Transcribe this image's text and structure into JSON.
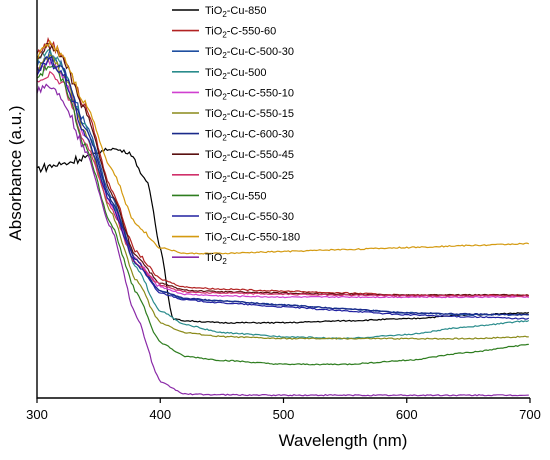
{
  "chart_data": {
    "type": "line",
    "title": "",
    "xlabel": "Wavelength (nm)",
    "ylabel": "Absorbance (a.u.)",
    "xlim": [
      300,
      700
    ],
    "ylim": [
      0,
      1
    ],
    "x_ticks": [
      300,
      400,
      500,
      600,
      700
    ],
    "y_ticks_shown": false,
    "grid": false,
    "legend_position": "top-center",
    "series": [
      {
        "name": "TiO2-Cu-850",
        "name_base": "TiO",
        "name_sub": "2",
        "name_rest": "-Cu-850",
        "color": "#000000",
        "points": [
          [
            300,
            0.58
          ],
          [
            320,
            0.59
          ],
          [
            340,
            0.61
          ],
          [
            360,
            0.63
          ],
          [
            375,
            0.62
          ],
          [
            390,
            0.54
          ],
          [
            400,
            0.38
          ],
          [
            410,
            0.2
          ],
          [
            420,
            0.195
          ],
          [
            450,
            0.19
          ],
          [
            500,
            0.19
          ],
          [
            550,
            0.195
          ],
          [
            600,
            0.2
          ],
          [
            650,
            0.21
          ],
          [
            700,
            0.215
          ]
        ]
      },
      {
        "name": "TiO2-C-550-60",
        "name_base": "TiO",
        "name_sub": "2",
        "name_rest": "-C-550-60",
        "color": "#b22222",
        "points": [
          [
            300,
            0.87
          ],
          [
            310,
            0.9
          ],
          [
            320,
            0.87
          ],
          [
            340,
            0.73
          ],
          [
            360,
            0.53
          ],
          [
            380,
            0.37
          ],
          [
            400,
            0.3
          ],
          [
            420,
            0.28
          ],
          [
            450,
            0.275
          ],
          [
            500,
            0.27
          ],
          [
            550,
            0.265
          ],
          [
            600,
            0.26
          ],
          [
            650,
            0.26
          ],
          [
            700,
            0.26
          ]
        ]
      },
      {
        "name": "TiO2-Cu-C-500-30",
        "name_base": "TiO",
        "name_sub": "2",
        "name_rest": "-Cu-C-500-30",
        "color": "#1f4fa0",
        "points": [
          [
            300,
            0.84
          ],
          [
            310,
            0.87
          ],
          [
            320,
            0.84
          ],
          [
            340,
            0.69
          ],
          [
            360,
            0.51
          ],
          [
            380,
            0.35
          ],
          [
            400,
            0.27
          ],
          [
            420,
            0.25
          ],
          [
            450,
            0.245
          ],
          [
            500,
            0.235
          ],
          [
            550,
            0.225
          ],
          [
            600,
            0.215
          ],
          [
            650,
            0.21
          ],
          [
            700,
            0.21
          ]
        ]
      },
      {
        "name": "TiO2-Cu-500",
        "name_base": "TiO",
        "name_sub": "2",
        "name_rest": "-Cu-500",
        "color": "#2a8c8c",
        "points": [
          [
            300,
            0.85
          ],
          [
            310,
            0.88
          ],
          [
            320,
            0.84
          ],
          [
            340,
            0.68
          ],
          [
            360,
            0.5
          ],
          [
            380,
            0.33
          ],
          [
            400,
            0.22
          ],
          [
            420,
            0.185
          ],
          [
            450,
            0.165
          ],
          [
            500,
            0.155
          ],
          [
            550,
            0.15
          ],
          [
            600,
            0.16
          ],
          [
            650,
            0.18
          ],
          [
            700,
            0.195
          ]
        ]
      },
      {
        "name": "TiO2-Cu-C-550-10",
        "name_base": "TiO",
        "name_sub": "2",
        "name_rest": "-Cu-C-550-10",
        "color": "#d040d0",
        "points": [
          [
            300,
            0.82
          ],
          [
            310,
            0.85
          ],
          [
            320,
            0.82
          ],
          [
            340,
            0.66
          ],
          [
            360,
            0.49
          ],
          [
            380,
            0.35
          ],
          [
            400,
            0.28
          ],
          [
            420,
            0.262
          ],
          [
            450,
            0.258
          ],
          [
            500,
            0.255
          ],
          [
            550,
            0.255
          ],
          [
            600,
            0.255
          ],
          [
            650,
            0.255
          ],
          [
            700,
            0.255
          ]
        ]
      },
      {
        "name": "TiO2-Cu-C-550-15",
        "name_base": "TiO",
        "name_sub": "2",
        "name_rest": "-Cu-C-550-15",
        "color": "#8a8a1a",
        "points": [
          [
            300,
            0.83
          ],
          [
            310,
            0.86
          ],
          [
            320,
            0.83
          ],
          [
            340,
            0.66
          ],
          [
            360,
            0.47
          ],
          [
            380,
            0.3
          ],
          [
            400,
            0.19
          ],
          [
            420,
            0.165
          ],
          [
            450,
            0.155
          ],
          [
            500,
            0.15
          ],
          [
            550,
            0.15
          ],
          [
            600,
            0.15
          ],
          [
            650,
            0.15
          ],
          [
            700,
            0.155
          ]
        ]
      },
      {
        "name": "TiO2-Cu-C-600-30",
        "name_base": "TiO",
        "name_sub": "2",
        "name_rest": "-Cu-C-600-30",
        "color": "#1a2a8a",
        "points": [
          [
            300,
            0.83
          ],
          [
            310,
            0.86
          ],
          [
            320,
            0.83
          ],
          [
            340,
            0.68
          ],
          [
            360,
            0.5
          ],
          [
            380,
            0.35
          ],
          [
            400,
            0.27
          ],
          [
            420,
            0.252
          ],
          [
            450,
            0.245
          ],
          [
            500,
            0.235
          ],
          [
            550,
            0.225
          ],
          [
            600,
            0.215
          ],
          [
            650,
            0.212
          ],
          [
            700,
            0.21
          ]
        ]
      },
      {
        "name": "TiO2-Cu-C-550-45",
        "name_base": "TiO",
        "name_sub": "2",
        "name_rest": "-Cu-C-550-45",
        "color": "#5a1010",
        "points": [
          [
            300,
            0.86
          ],
          [
            310,
            0.89
          ],
          [
            320,
            0.86
          ],
          [
            340,
            0.72
          ],
          [
            360,
            0.52
          ],
          [
            380,
            0.36
          ],
          [
            400,
            0.29
          ],
          [
            420,
            0.272
          ],
          [
            450,
            0.268
          ],
          [
            500,
            0.265
          ],
          [
            550,
            0.262
          ],
          [
            600,
            0.26
          ],
          [
            650,
            0.26
          ],
          [
            700,
            0.26
          ]
        ]
      },
      {
        "name": "TiO2-Cu-C-500-25",
        "name_base": "TiO",
        "name_sub": "2",
        "name_rest": "-Cu-C-500-25",
        "color": "#d0306a",
        "points": [
          [
            300,
            0.8
          ],
          [
            310,
            0.82
          ],
          [
            320,
            0.8
          ],
          [
            340,
            0.64
          ],
          [
            360,
            0.48
          ],
          [
            380,
            0.34
          ],
          [
            400,
            0.285
          ],
          [
            420,
            0.268
          ],
          [
            450,
            0.265
          ],
          [
            500,
            0.262
          ],
          [
            550,
            0.26
          ],
          [
            600,
            0.258
          ],
          [
            650,
            0.258
          ],
          [
            700,
            0.258
          ]
        ]
      },
      {
        "name": "TiO2-Cu-550",
        "name_base": "TiO",
        "name_sub": "2",
        "name_rest": "-Cu-550",
        "color": "#2e7d1f",
        "points": [
          [
            300,
            0.81
          ],
          [
            310,
            0.84
          ],
          [
            320,
            0.81
          ],
          [
            340,
            0.63
          ],
          [
            360,
            0.44
          ],
          [
            380,
            0.27
          ],
          [
            400,
            0.14
          ],
          [
            420,
            0.105
          ],
          [
            450,
            0.095
          ],
          [
            500,
            0.085
          ],
          [
            550,
            0.085
          ],
          [
            600,
            0.095
          ],
          [
            650,
            0.115
          ],
          [
            700,
            0.135
          ]
        ]
      },
      {
        "name": "TiO2-Cu-C-550-30",
        "name_base": "TiO",
        "name_sub": "2",
        "name_rest": "-Cu-C-550-30",
        "color": "#2020a0",
        "points": [
          [
            300,
            0.82
          ],
          [
            310,
            0.85
          ],
          [
            320,
            0.82
          ],
          [
            340,
            0.66
          ],
          [
            360,
            0.49
          ],
          [
            380,
            0.34
          ],
          [
            400,
            0.265
          ],
          [
            420,
            0.248
          ],
          [
            450,
            0.24
          ],
          [
            500,
            0.23
          ],
          [
            550,
            0.22
          ],
          [
            600,
            0.21
          ],
          [
            650,
            0.205
          ],
          [
            700,
            0.2
          ]
        ]
      },
      {
        "name": "TiO2-Cu-C-550-180",
        "name_base": "TiO",
        "name_sub": "2",
        "name_rest": "-Cu-C-550-180",
        "color": "#d49a10",
        "points": [
          [
            300,
            0.86
          ],
          [
            310,
            0.9
          ],
          [
            320,
            0.87
          ],
          [
            340,
            0.74
          ],
          [
            360,
            0.58
          ],
          [
            380,
            0.44
          ],
          [
            400,
            0.38
          ],
          [
            420,
            0.365
          ],
          [
            450,
            0.365
          ],
          [
            500,
            0.37
          ],
          [
            550,
            0.375
          ],
          [
            600,
            0.38
          ],
          [
            650,
            0.385
          ],
          [
            700,
            0.39
          ]
        ]
      },
      {
        "name": "TiO2",
        "name_base": "TiO",
        "name_sub": "2",
        "name_rest": "",
        "color": "#8a2aa8",
        "points": [
          [
            300,
            0.78
          ],
          [
            310,
            0.79
          ],
          [
            320,
            0.76
          ],
          [
            340,
            0.62
          ],
          [
            360,
            0.43
          ],
          [
            380,
            0.21
          ],
          [
            400,
            0.04
          ],
          [
            420,
            0.01
          ],
          [
            450,
            0.008
          ],
          [
            500,
            0.007
          ],
          [
            550,
            0.007
          ],
          [
            600,
            0.007
          ],
          [
            650,
            0.007
          ],
          [
            700,
            0.007
          ]
        ]
      }
    ]
  }
}
